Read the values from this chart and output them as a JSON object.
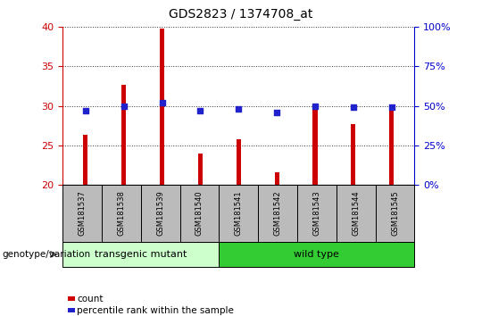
{
  "title": "GDS2823 / 1374708_at",
  "samples": [
    "GSM181537",
    "GSM181538",
    "GSM181539",
    "GSM181540",
    "GSM181541",
    "GSM181542",
    "GSM181543",
    "GSM181544",
    "GSM181545"
  ],
  "counts": [
    26.3,
    32.7,
    39.8,
    24.0,
    25.8,
    21.6,
    30.3,
    27.7,
    29.8
  ],
  "percentiles": [
    47,
    50,
    52,
    47,
    48,
    46,
    50,
    49,
    49
  ],
  "ylim_left": [
    20,
    40
  ],
  "ylim_right": [
    0,
    100
  ],
  "yticks_left": [
    20,
    25,
    30,
    35,
    40
  ],
  "yticks_right": [
    0,
    25,
    50,
    75,
    100
  ],
  "bar_color": "#cc0000",
  "dot_color": "#2222cc",
  "group1_label": "transgenic mutant",
  "group2_label": "wild type",
  "group1_color": "#ccffcc",
  "group2_color": "#33cc33",
  "group1_count": 4,
  "group2_count": 5,
  "xlabel_label": "genotype/variation",
  "legend_count": "count",
  "legend_pct": "percentile rank within the sample",
  "tick_color_left": "#cc0000",
  "tick_color_right": "#0000cc",
  "dotted_grid_color": "#333333",
  "background_plot": "#ffffff",
  "background_tick": "#bbbbbb",
  "bar_width": 0.12
}
